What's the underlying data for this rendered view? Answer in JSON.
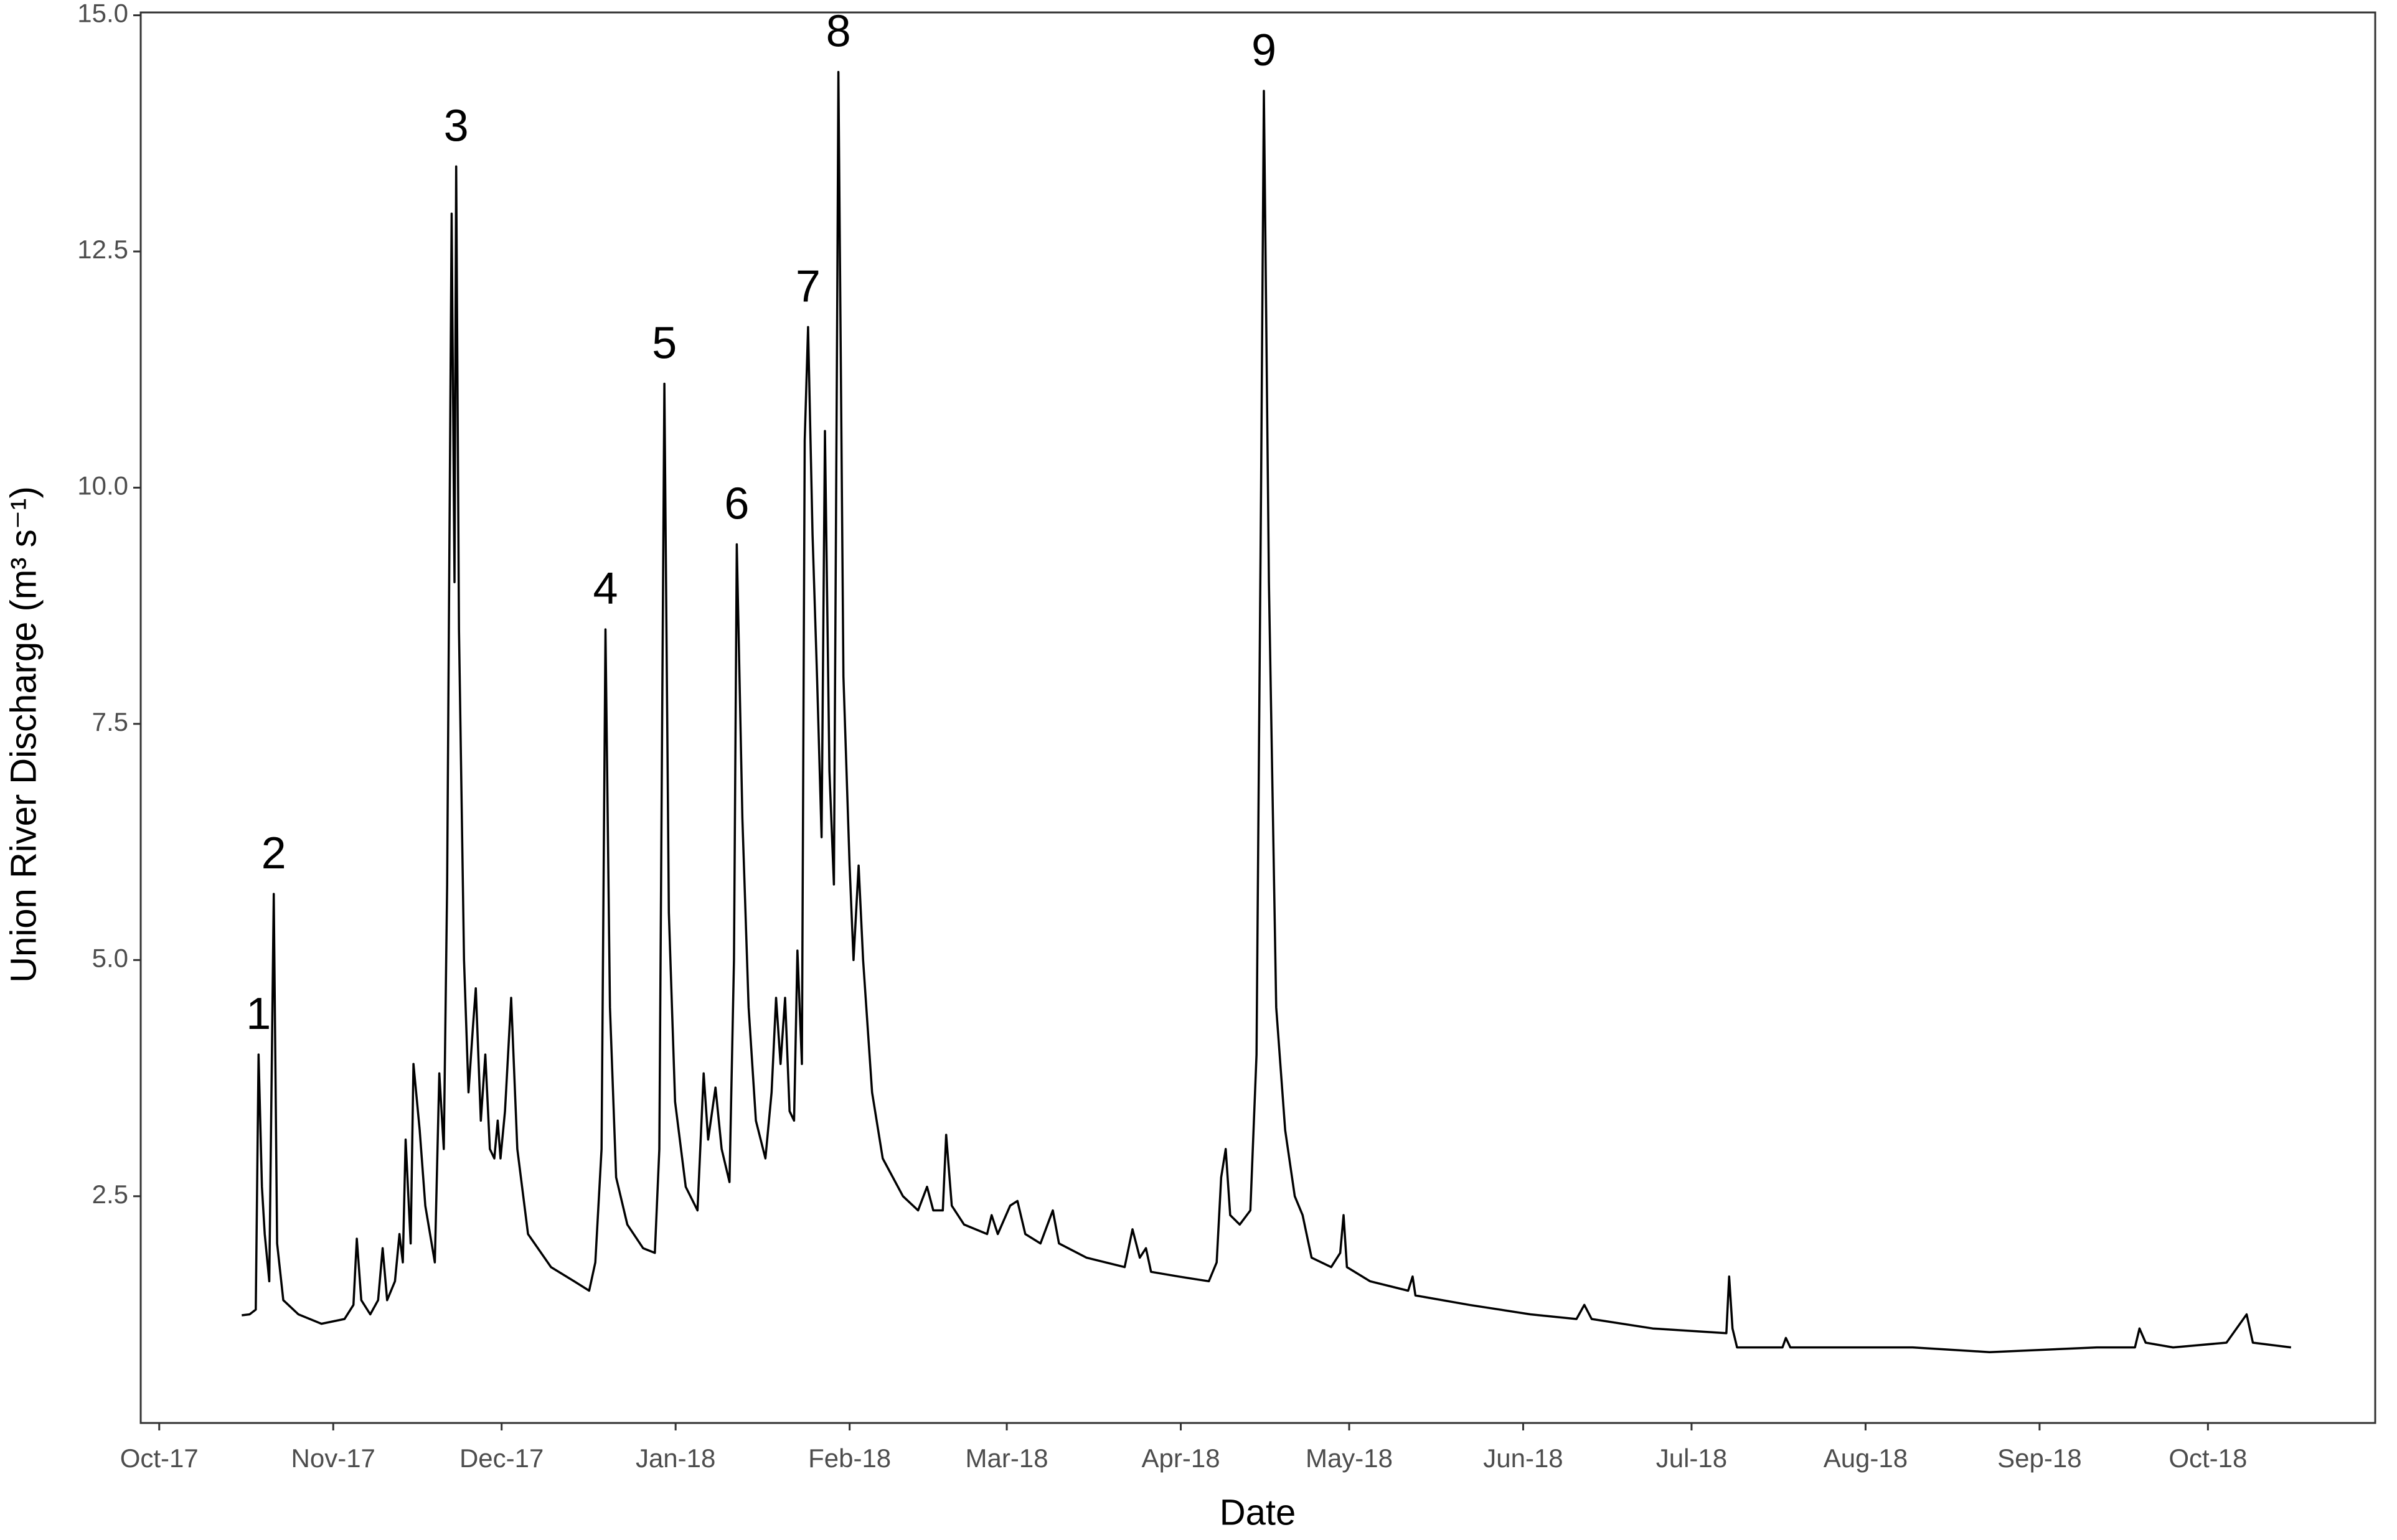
{
  "chart_data": {
    "type": "line",
    "xlabel": "Date",
    "ylabel": "Union River Discharge (m³ s⁻¹)",
    "color": "#000000",
    "xlim": [
      -3.3,
      394.8
    ],
    "ylim": [
      0.1,
      15.03
    ],
    "xticks": [
      {
        "value": 0,
        "label": "Oct-17"
      },
      {
        "value": 31,
        "label": "Nov-17"
      },
      {
        "value": 61,
        "label": "Dec-17"
      },
      {
        "value": 92,
        "label": "Jan-18"
      },
      {
        "value": 123,
        "label": "Feb-18"
      },
      {
        "value": 151,
        "label": "Mar-18"
      },
      {
        "value": 182,
        "label": "Apr-18"
      },
      {
        "value": 212,
        "label": "May-18"
      },
      {
        "value": 243,
        "label": "Jun-18"
      },
      {
        "value": 273,
        "label": "Jul-18"
      },
      {
        "value": 304,
        "label": "Aug-18"
      },
      {
        "value": 335,
        "label": "Sep-18"
      },
      {
        "value": 365,
        "label": "Oct-18"
      }
    ],
    "yticks": [
      2.5,
      {
        "value": 5,
        "label": "5.0"
      },
      7.5,
      {
        "value": 10,
        "label": "10.0"
      },
      12.5,
      {
        "value": 15,
        "label": "15.0"
      }
    ],
    "x": [
      14.7,
      16.1,
      17.2,
      17.7,
      18.3,
      18.8,
      19.6,
      20.4,
      21.0,
      22.1,
      24.8,
      28.9,
      33.0,
      34.6,
      35.2,
      36.0,
      37.6,
      39.0,
      39.8,
      40.6,
      42.0,
      42.8,
      43.4,
      43.9,
      44.8,
      45.3,
      46.4,
      47.4,
      49.1,
      49.9,
      50.7,
      51.3,
      52.1,
      52.6,
      52.9,
      53.4,
      54.3,
      55.1,
      55.9,
      56.4,
      57.3,
      58.1,
      58.9,
      59.7,
      60.3,
      60.8,
      61.6,
      62.7,
      63.8,
      65.7,
      69.8,
      73.9,
      76.6,
      77.7,
      78.8,
      79.5,
      80.3,
      81.4,
      83.4,
      86.2,
      88.3,
      89.1,
      90.0,
      90.8,
      91.9,
      93.8,
      95.9,
      97.0,
      97.8,
      99.1,
      100.2,
      101.6,
      102.4,
      102.9,
      103.9,
      105.0,
      106.3,
      108.0,
      109.1,
      109.9,
      110.7,
      111.5,
      112.3,
      113.1,
      113.7,
      114.5,
      115.0,
      115.6,
      116.4,
      117.2,
      118.0,
      118.6,
      119.4,
      120.2,
      120.8,
      121.0,
      121.9,
      123.0,
      123.7,
      124.6,
      125.4,
      127.0,
      128.9,
      132.5,
      135.2,
      136.8,
      137.9,
      139.6,
      140.2,
      141.2,
      143.4,
      147.5,
      148.3,
      149.4,
      151.6,
      152.9,
      154.3,
      157.0,
      159.2,
      160.3,
      165.2,
      172.0,
      173.4,
      174.7,
      175.8,
      176.7,
      181.6,
      187.0,
      188.4,
      189.2,
      190.0,
      190.8,
      192.5,
      194.4,
      195.5,
      196.3,
      196.8,
      197.7,
      199.0,
      200.6,
      202.3,
      203.7,
      205.3,
      208.8,
      210.4,
      211.0,
      211.6,
      215.7,
      222.5,
      223.3,
      223.8,
      233.4,
      244.3,
      252.5,
      253.9,
      255.2,
      266.1,
      279.2,
      279.7,
      280.3,
      281.1,
      289.2,
      289.8,
      290.6,
      312.4,
      326.1,
      345.2,
      352.0,
      352.8,
      353.9,
      358.8,
      368.3,
      371.9,
      373.0,
      379.8
    ],
    "values": [
      1.24,
      1.25,
      1.3,
      4.0,
      2.6,
      2.1,
      1.6,
      5.7,
      2.0,
      1.4,
      1.25,
      1.15,
      1.2,
      1.35,
      2.05,
      1.4,
      1.25,
      1.4,
      1.95,
      1.4,
      1.6,
      2.1,
      1.8,
      3.1,
      2.0,
      3.9,
      3.2,
      2.4,
      1.8,
      3.8,
      3.0,
      5.8,
      12.9,
      9.0,
      13.4,
      8.5,
      5.0,
      3.6,
      4.3,
      4.7,
      3.3,
      4.0,
      3.0,
      2.9,
      3.3,
      2.9,
      3.4,
      4.6,
      3.0,
      2.1,
      1.75,
      1.6,
      1.5,
      1.8,
      3.0,
      8.5,
      4.5,
      2.7,
      2.2,
      1.95,
      1.9,
      3.0,
      11.1,
      5.5,
      3.5,
      2.6,
      2.35,
      3.8,
      3.1,
      3.65,
      3.0,
      2.65,
      5.0,
      9.4,
      6.5,
      4.5,
      3.3,
      2.9,
      3.6,
      4.6,
      3.9,
      4.6,
      3.4,
      3.3,
      5.1,
      3.9,
      10.5,
      11.7,
      9.5,
      8.0,
      6.3,
      10.6,
      7.0,
      5.8,
      12.0,
      14.4,
      8.0,
      6.0,
      5.0,
      6.0,
      5.0,
      3.6,
      2.9,
      2.5,
      2.35,
      2.6,
      2.35,
      2.35,
      3.15,
      2.4,
      2.2,
      2.1,
      2.3,
      2.1,
      2.4,
      2.45,
      2.1,
      2.0,
      2.35,
      2.0,
      1.85,
      1.75,
      2.15,
      1.85,
      1.95,
      1.7,
      1.65,
      1.6,
      1.8,
      2.7,
      3.0,
      2.3,
      2.2,
      2.35,
      4.0,
      10.0,
      14.2,
      9.0,
      4.5,
      3.2,
      2.5,
      2.3,
      1.85,
      1.75,
      1.9,
      2.3,
      1.75,
      1.6,
      1.5,
      1.65,
      1.45,
      1.35,
      1.25,
      1.2,
      1.35,
      1.2,
      1.1,
      1.05,
      1.65,
      1.1,
      0.9,
      0.9,
      1.0,
      0.9,
      0.9,
      0.85,
      0.9,
      0.9,
      1.1,
      0.95,
      0.9,
      0.95,
      1.25,
      0.95,
      0.9
    ],
    "annotations": [
      {
        "text": "1",
        "x": 17.7,
        "y": 4.0
      },
      {
        "text": "2",
        "x": 20.4,
        "y": 5.7
      },
      {
        "text": "3",
        "x": 52.9,
        "y": 13.4
      },
      {
        "text": "4",
        "x": 79.5,
        "y": 8.5
      },
      {
        "text": "5",
        "x": 90.0,
        "y": 11.1
      },
      {
        "text": "6",
        "x": 102.9,
        "y": 9.4
      },
      {
        "text": "7",
        "x": 115.6,
        "y": 11.7
      },
      {
        "text": "8",
        "x": 121.0,
        "y": 14.4
      },
      {
        "text": "9",
        "x": 196.8,
        "y": 14.2
      }
    ]
  }
}
